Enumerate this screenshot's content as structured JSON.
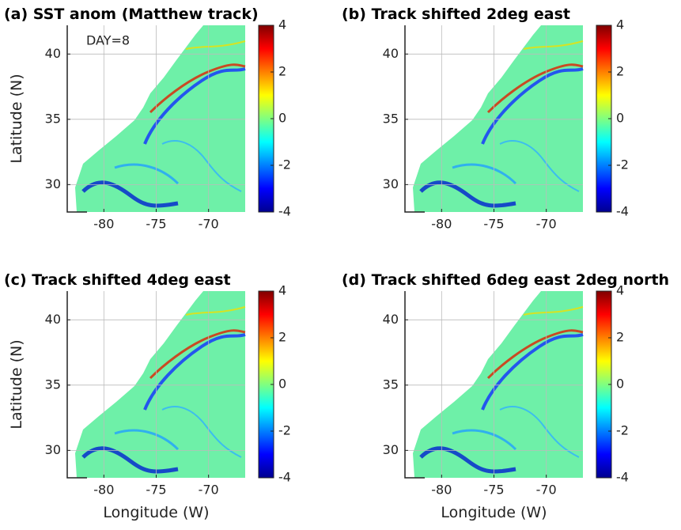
{
  "chart_data": [
    {
      "type": "heatmap",
      "title": "(a) SST anom (Matthew track)",
      "annotation": "DAY=8",
      "ylabel": "Latitude (N)",
      "xlim": [
        -83.5,
        -66.5
      ],
      "ylim": [
        27.9,
        42.2
      ],
      "xticks": [
        -80,
        -75,
        -70
      ],
      "yticks": [
        30,
        35,
        40
      ],
      "grid": true,
      "colormap": "jet",
      "clim": [
        -4,
        4
      ],
      "colorbar_ticks": [
        -4,
        -2,
        0,
        2,
        4
      ]
    },
    {
      "type": "heatmap",
      "title": "(b) Track shifted 2deg east",
      "xlim": [
        -83.5,
        -66.5
      ],
      "ylim": [
        27.9,
        42.2
      ],
      "xticks": [
        -80,
        -75,
        -70
      ],
      "yticks": [
        30,
        35,
        40
      ],
      "grid": true,
      "colormap": "jet",
      "clim": [
        -4,
        4
      ],
      "colorbar_ticks": [
        -4,
        -2,
        0,
        2,
        4
      ]
    },
    {
      "type": "heatmap",
      "title": "(c) Track shifted 4deg east",
      "ylabel": "Latitude (N)",
      "xlabel": "Longitude (W)",
      "xlim": [
        -83.5,
        -66.5
      ],
      "ylim": [
        27.9,
        42.2
      ],
      "xticks": [
        -80,
        -75,
        -70
      ],
      "yticks": [
        30,
        35,
        40
      ],
      "grid": true,
      "colormap": "jet",
      "clim": [
        -4,
        4
      ],
      "colorbar_ticks": [
        -4,
        -2,
        0,
        2,
        4
      ]
    },
    {
      "type": "heatmap",
      "title": "(d) Track shifted 6deg east 2deg north",
      "xlabel": "Longitude (W)",
      "xlim": [
        -83.5,
        -66.5
      ],
      "ylim": [
        27.9,
        42.2
      ],
      "xticks": [
        -80,
        -75,
        -70
      ],
      "yticks": [
        30,
        35,
        40
      ],
      "grid": true,
      "colormap": "jet",
      "clim": [
        -4,
        4
      ],
      "colorbar_ticks": [
        -4,
        -2,
        0,
        2,
        4
      ]
    }
  ]
}
